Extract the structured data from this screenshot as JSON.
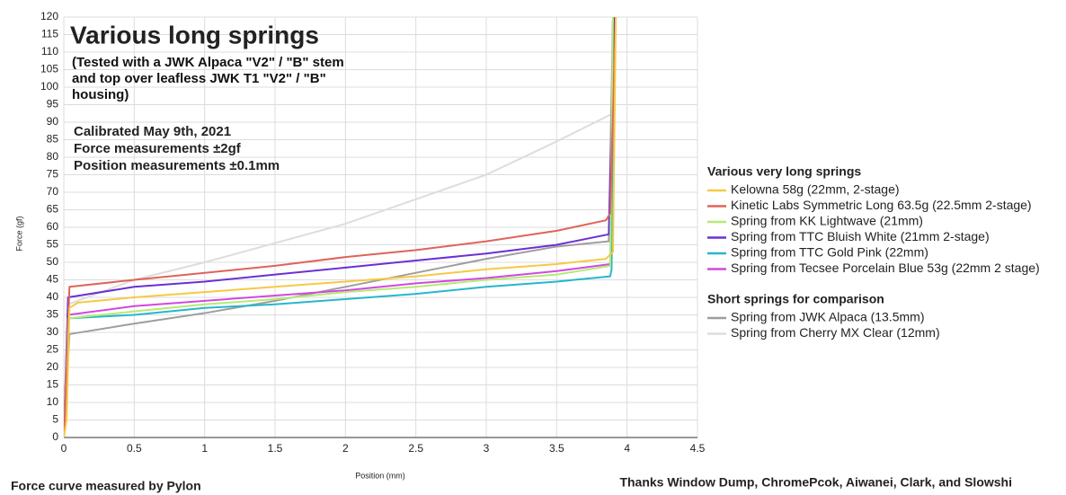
{
  "chart_data": {
    "type": "line",
    "title": "Various long springs",
    "subtitle": "(Tested with a JWK Alpaca \"V2\" / \"B\" stem and top over leafless JWK T1 \"V2\" / \"B\" housing)",
    "notes": [
      "Calibrated May 9th, 2021",
      "Force measurements ±2gf",
      "Position measurements ±0.1mm"
    ],
    "x_label": "Position (mm)",
    "y_label": "Force (gf)",
    "footer_left": "Force curve measured by Pylon",
    "footer_right": "Thanks Window Dump, ChromePcok, Aiwanei, Clark, and  Slowshi",
    "xlim": [
      0,
      4.5
    ],
    "xticks": [
      0,
      0.5,
      1,
      1.5,
      2,
      2.5,
      3,
      3.5,
      4,
      4.5
    ],
    "ylim": [
      0,
      120
    ],
    "yticks": [
      0,
      5,
      10,
      15,
      20,
      25,
      30,
      35,
      40,
      45,
      50,
      55,
      60,
      65,
      70,
      75,
      80,
      85,
      90,
      95,
      100,
      105,
      110,
      115,
      120
    ],
    "grid": true,
    "series_groups": [
      {
        "title": "Various very long springs",
        "series": [
          {
            "name": "Kelowna 58g (22mm, 2-stage)",
            "color": "#f6c944",
            "x": [
              0,
              0.02,
              0.04,
              0.1,
              0.5,
              1,
              1.5,
              2,
              2.5,
              3,
              3.5,
              3.85,
              3.9,
              3.92
            ],
            "values": [
              0,
              5,
              37,
              38.5,
              40,
              41.5,
              43,
              44.5,
              46,
              48,
              49.5,
              51,
              53,
              120
            ]
          },
          {
            "name": "Kinetic Labs Symmetric Long 63.5g (22.5mm 2-stage)",
            "color": "#e0635a",
            "x": [
              0,
              0.02,
              0.04,
              0.5,
              1,
              1.5,
              2,
              2.5,
              3,
              3.5,
              3.85,
              3.88,
              3.92
            ],
            "values": [
              0,
              20,
              43,
              45,
              47,
              49,
              51.5,
              53.5,
              56,
              59,
              62,
              64,
              120
            ]
          },
          {
            "name": "Spring from KK Lightwave (21mm)",
            "color": "#b4eb74",
            "x": [
              0,
              0.03,
              0.5,
              1,
              1.5,
              2,
              2.5,
              3,
              3.5,
              3.88,
              3.9
            ],
            "values": [
              0,
              34,
              36,
              38,
              39.5,
              41.5,
              43,
              45,
              46.5,
              49,
              120
            ]
          },
          {
            "name": "Spring from TTC Bluish White (21mm 2-stage)",
            "color": "#6a30d6",
            "x": [
              0,
              0.03,
              0.5,
              1,
              1.5,
              2,
              2.5,
              3,
              3.5,
              3.87,
              3.91
            ],
            "values": [
              0,
              40,
              43,
              44.5,
              46.5,
              48.5,
              50.5,
              52.5,
              55,
              58,
              120
            ]
          },
          {
            "name": "Spring from TTC Gold Pink (22mm)",
            "color": "#27b6cc",
            "x": [
              0,
              0.03,
              0.5,
              1,
              1.5,
              2,
              2.5,
              3,
              3.5,
              3.88,
              3.89,
              3.91
            ],
            "values": [
              0,
              34,
              35,
              37,
              38,
              39.5,
              41,
              43,
              44.5,
              46,
              48,
              120
            ]
          },
          {
            "name": "Spring from Tecsee Porcelain Blue 53g (22mm 2 stage)",
            "color": "#d148e0",
            "x": [
              0,
              0.03,
              0.5,
              1,
              1.5,
              2,
              2.5,
              3,
              3.5,
              3.88,
              3.9
            ],
            "values": [
              0,
              35,
              37.5,
              39,
              40.5,
              42,
              44,
              45.5,
              47.5,
              49.5,
              120
            ]
          }
        ]
      },
      {
        "title": "Short springs for comparison",
        "series": [
          {
            "name": "Spring from JWK  Alpaca (13.5mm)",
            "color": "#9e9e9e",
            "x": [
              0,
              0.04,
              0.5,
              1,
              1.5,
              2,
              2.5,
              3,
              3.5,
              3.87,
              3.9
            ],
            "values": [
              0,
              29.5,
              32.5,
              35.5,
              39,
              43,
              47,
              51,
              54.5,
              56,
              120
            ]
          },
          {
            "name": "Spring from Cherry MX Clear (12mm)",
            "color": "#dddddd",
            "x": [
              0,
              0.03,
              0.5,
              1,
              1.5,
              2,
              2.5,
              3,
              3.5,
              3.9
            ],
            "values": [
              0,
              38,
              45,
              50,
              55.5,
              61,
              68,
              75,
              84.5,
              92.5
            ]
          }
        ]
      }
    ]
  }
}
